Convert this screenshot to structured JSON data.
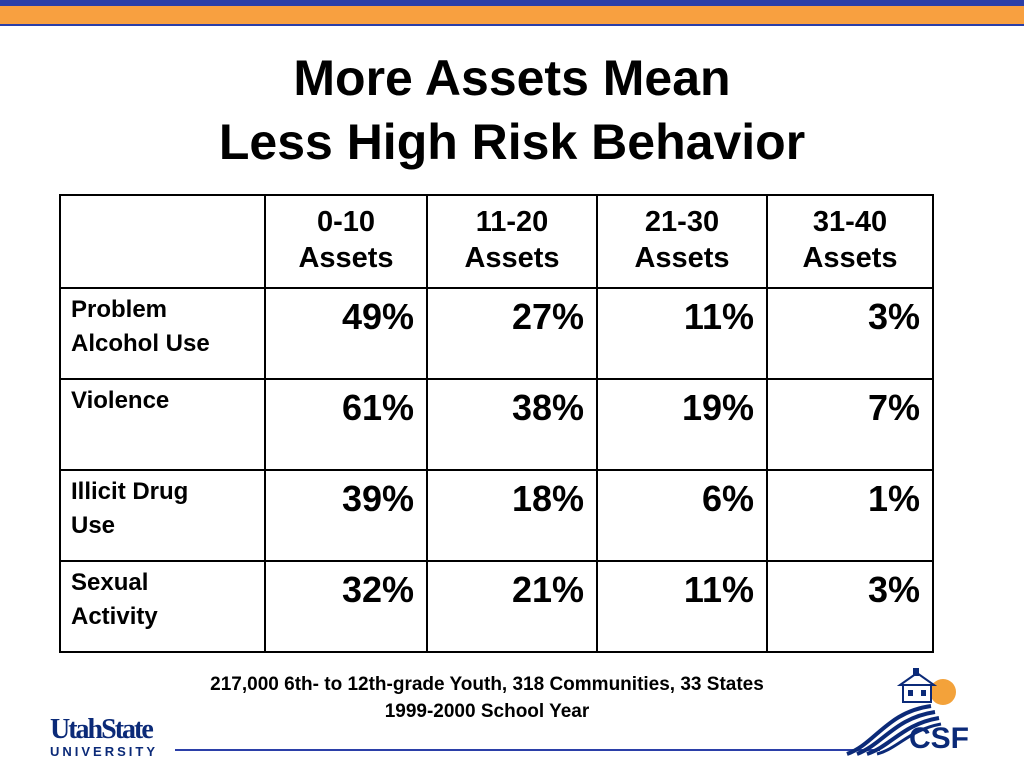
{
  "title": {
    "line1": "More Assets Mean",
    "line2": "Less High Risk Behavior"
  },
  "table": {
    "columns": [
      "0-10 Assets",
      "11-20 Assets",
      "21-30 Assets",
      "31-40 Assets"
    ],
    "column_lines": [
      [
        "0-10",
        "Assets"
      ],
      [
        "11-20",
        "Assets"
      ],
      [
        "21-30",
        "Assets"
      ],
      [
        "31-40",
        "Assets"
      ]
    ],
    "rows": [
      {
        "label_lines": [
          "Problem",
          "Alcohol Use"
        ],
        "values": [
          "49%",
          "27%",
          "11%",
          "3%"
        ]
      },
      {
        "label_lines": [
          "Violence"
        ],
        "values": [
          "61%",
          "38%",
          "19%",
          "7%"
        ]
      },
      {
        "label_lines": [
          "Illicit Drug",
          "Use"
        ],
        "values": [
          "39%",
          "18%",
          "6%",
          "1%"
        ]
      },
      {
        "label_lines": [
          "Sexual",
          "Activity"
        ],
        "values": [
          "32%",
          "21%",
          "11%",
          "3%"
        ]
      }
    ]
  },
  "footer": {
    "line1": "217,000 6th- to 12th-grade Youth, 318 Communities, 33 States",
    "line2": "1999-2000 School Year"
  },
  "logos": {
    "usu_main": "UtahState",
    "usu_sub": "UNIVERSITY",
    "csf": "CSF"
  },
  "colors": {
    "top_band_blue": "#2b3fa8",
    "top_band_orange": "#f8a040",
    "logo_navy": "#0b2a78"
  }
}
